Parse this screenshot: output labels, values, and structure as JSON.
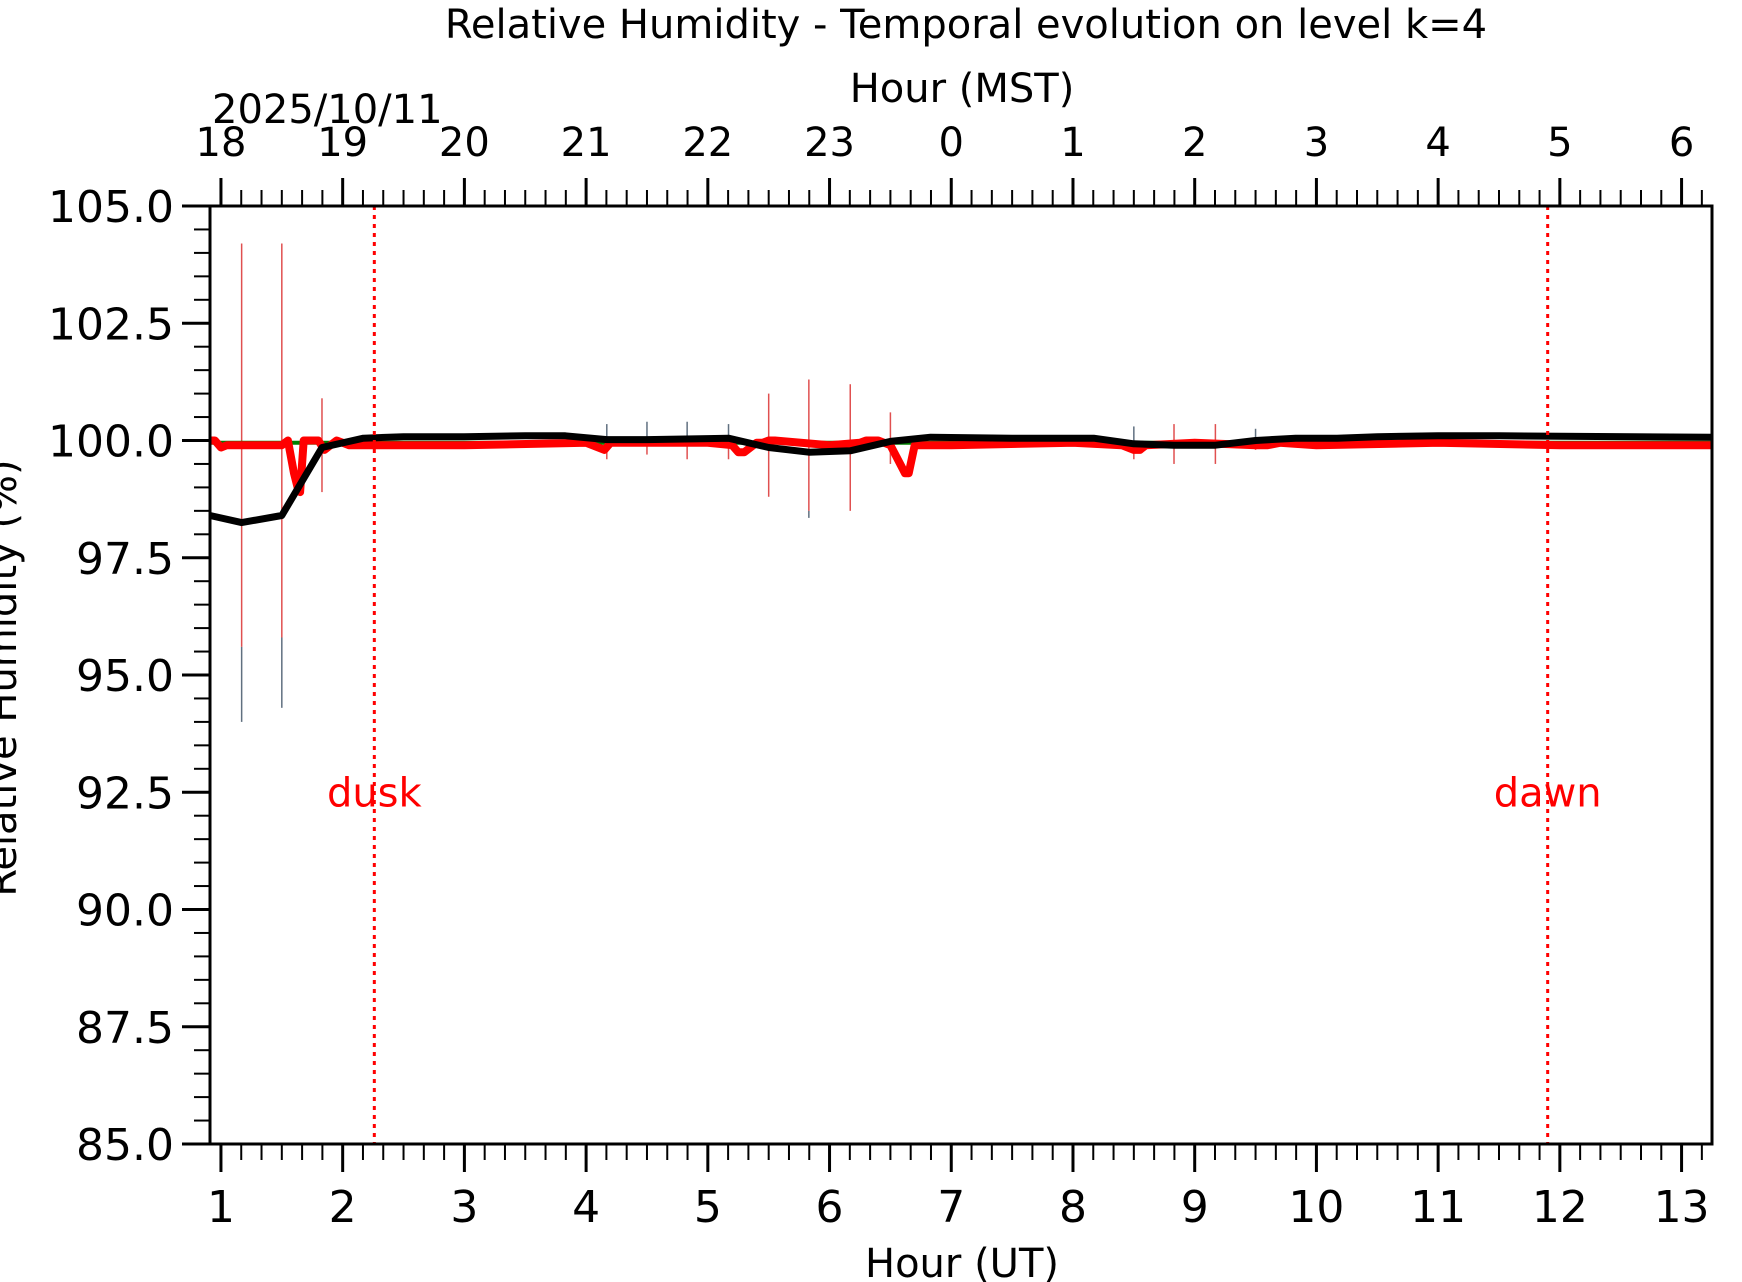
{
  "chart_data": {
    "type": "line",
    "title": "Relative Humidity - Temporal evolution on level k=4",
    "xlabel": "Hour (UT)",
    "ylabel": "Relative Humidity (%)",
    "top_xlabel": "Hour (MST)",
    "date_label": "2025/10/11",
    "xlim": [
      0.91,
      13.25
    ],
    "ylim": [
      85.0,
      105.0
    ],
    "x_ticks": [
      1,
      2,
      3,
      4,
      5,
      6,
      7,
      8,
      9,
      10,
      11,
      12,
      13
    ],
    "x_tick_labels": [
      "1",
      "2",
      "3",
      "4",
      "5",
      "6",
      "7",
      "8",
      "9",
      "10",
      "11",
      "12",
      "13"
    ],
    "top_ticks": [
      1,
      2,
      3,
      4,
      5,
      6,
      7,
      8,
      9,
      10,
      11,
      12,
      13
    ],
    "top_tick_labels": [
      "18",
      "19",
      "20",
      "21",
      "22",
      "23",
      "0",
      "1",
      "2",
      "3",
      "4",
      "5",
      "6"
    ],
    "y_ticks": [
      85.0,
      87.5,
      90.0,
      92.5,
      95.0,
      97.5,
      100.0,
      102.5,
      105.0
    ],
    "y_tick_labels": [
      "85.0",
      "87.5",
      "90.0",
      "92.5",
      "95.0",
      "97.5",
      "100.0",
      "102.5",
      "105.0"
    ],
    "events": [
      {
        "label": "dusk",
        "x": 2.26,
        "label_y": 92.2
      },
      {
        "label": "dawn",
        "x": 11.9,
        "label_y": 92.2
      }
    ],
    "series": [
      {
        "name": "green",
        "color": "#008000",
        "x": [
          0.91,
          2.0,
          3.0,
          4.0,
          5.0,
          6.0,
          7.0,
          8.0,
          9.0,
          10.0,
          11.0,
          12.0,
          13.25
        ],
        "values": [
          99.95,
          99.95,
          99.95,
          99.95,
          99.95,
          99.95,
          99.95,
          99.95,
          99.95,
          99.95,
          99.95,
          99.95,
          99.95
        ]
      },
      {
        "name": "red",
        "color": "#ff0000",
        "x": [
          0.91,
          0.95,
          1.0,
          1.05,
          1.5,
          1.55,
          1.6,
          1.63,
          1.65,
          1.68,
          1.7,
          1.8,
          1.85,
          1.9,
          1.95,
          2.0,
          2.05,
          3.0,
          4.0,
          4.1,
          4.15,
          4.2,
          5.0,
          5.2,
          5.25,
          5.3,
          5.4,
          5.45,
          5.5,
          5.55,
          6.0,
          6.25,
          6.3,
          6.4,
          6.5,
          6.6,
          6.62,
          6.65,
          6.7,
          7.0,
          8.0,
          8.4,
          8.5,
          8.55,
          8.6,
          9.0,
          9.5,
          9.6,
          9.7,
          10.0,
          11.0,
          12.0,
          13.25
        ],
        "values": [
          100.0,
          100.0,
          99.85,
          99.9,
          99.9,
          100.0,
          99.3,
          99.0,
          98.9,
          100.0,
          100.0,
          100.0,
          99.8,
          99.9,
          100.0,
          99.95,
          99.9,
          99.9,
          99.95,
          99.85,
          99.8,
          99.95,
          99.95,
          99.9,
          99.75,
          99.75,
          99.95,
          99.95,
          100.0,
          100.0,
          99.9,
          99.95,
          100.0,
          100.0,
          99.9,
          99.4,
          99.3,
          99.3,
          99.9,
          99.9,
          99.95,
          99.9,
          99.8,
          99.8,
          99.9,
          99.95,
          99.9,
          99.9,
          99.95,
          99.9,
          99.95,
          99.9,
          99.9
        ]
      },
      {
        "name": "black",
        "color": "#000000",
        "x": [
          0.91,
          1.17,
          1.5,
          1.83,
          2.17,
          2.5,
          3.0,
          3.5,
          3.83,
          4.17,
          4.5,
          5.0,
          5.17,
          5.5,
          5.83,
          6.17,
          6.5,
          6.83,
          7.5,
          8.17,
          8.5,
          8.83,
          9.17,
          9.5,
          9.83,
          10.17,
          10.5,
          11.0,
          11.5,
          12.0,
          13.25
        ],
        "values": [
          98.4,
          98.25,
          98.4,
          99.85,
          100.05,
          100.08,
          100.08,
          100.1,
          100.1,
          100.02,
          100.02,
          100.04,
          100.05,
          99.85,
          99.75,
          99.78,
          99.98,
          100.07,
          100.05,
          100.05,
          99.93,
          99.9,
          99.9,
          100.0,
          100.05,
          100.05,
          100.08,
          100.1,
          100.1,
          100.09,
          100.07
        ]
      }
    ],
    "error_bars": [
      {
        "x": 1.17,
        "red_low": 95.6,
        "red_high": 104.2,
        "gray_low": 94.0,
        "gray_high": 95.6
      },
      {
        "x": 1.5,
        "red_low": 95.8,
        "red_high": 104.2,
        "gray_low": 94.3,
        "gray_high": 95.8
      },
      {
        "x": 1.83,
        "red_low": 98.9,
        "red_high": 100.9
      },
      {
        "x": 4.17,
        "red_low": 99.6,
        "red_high": 100.0,
        "gray_low": 100.0,
        "gray_high": 100.35
      },
      {
        "x": 4.5,
        "red_low": 99.7,
        "red_high": 100.0,
        "gray_low": 100.0,
        "gray_high": 100.4
      },
      {
        "x": 4.83,
        "red_low": 99.6,
        "red_high": 100.0,
        "gray_low": 100.0,
        "gray_high": 100.4
      },
      {
        "x": 5.17,
        "red_low": 99.6,
        "red_high": 100.0,
        "gray_low": 100.0,
        "gray_high": 100.35
      },
      {
        "x": 5.5,
        "red_low": 98.8,
        "red_high": 101.0
      },
      {
        "x": 5.83,
        "red_low": 98.5,
        "red_high": 101.3,
        "gray_low": 98.35,
        "gray_high": 98.5
      },
      {
        "x": 6.17,
        "red_low": 98.5,
        "red_high": 101.2
      },
      {
        "x": 6.5,
        "red_low": 99.5,
        "red_high": 100.6
      },
      {
        "x": 8.5,
        "red_low": 99.6,
        "red_high": 100.0,
        "gray_low": 100.0,
        "gray_high": 100.3
      },
      {
        "x": 8.83,
        "red_low": 99.5,
        "red_high": 100.35
      },
      {
        "x": 9.17,
        "red_low": 99.5,
        "red_high": 100.35
      },
      {
        "x": 9.5,
        "red_low": 99.8,
        "red_high": 100.0,
        "gray_low": 100.0,
        "gray_high": 100.25
      }
    ]
  }
}
